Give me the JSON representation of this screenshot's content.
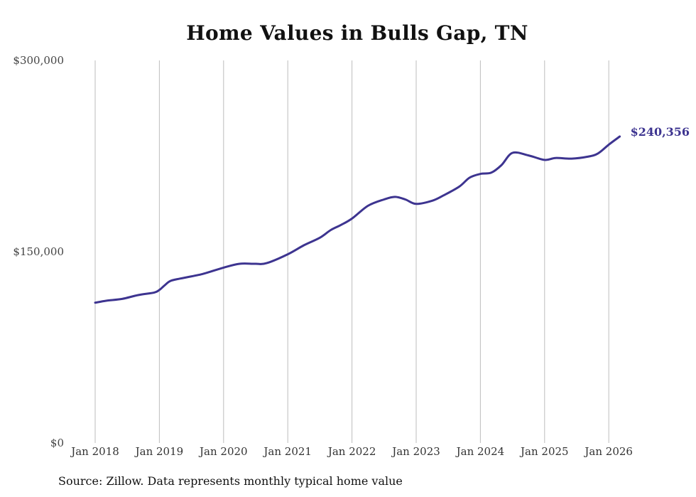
{
  "chart_data": {
    "type": "line",
    "title": "Home Values in Bulls Gap, TN",
    "xlabel": "",
    "ylabel": "",
    "ylim": [
      0,
      300000
    ],
    "y_ticks": [
      {
        "value": 0,
        "label": "$0"
      },
      {
        "value": 150000,
        "label": "$150,000"
      },
      {
        "value": 300000,
        "label": "$300,000"
      }
    ],
    "x_ticks": [
      {
        "value": 2018,
        "label": "Jan 2018"
      },
      {
        "value": 2019,
        "label": "Jan 2019"
      },
      {
        "value": 2020,
        "label": "Jan 2020"
      },
      {
        "value": 2021,
        "label": "Jan 2021"
      },
      {
        "value": 2022,
        "label": "Jan 2022"
      },
      {
        "value": 2023,
        "label": "Jan 2023"
      },
      {
        "value": 2024,
        "label": "Jan 2024"
      },
      {
        "value": 2025,
        "label": "Jan 2025"
      },
      {
        "value": 2026,
        "label": "Jan 2026"
      }
    ],
    "xlim": [
      2018,
      2026.2
    ],
    "grid": "vertical",
    "line_color": "#3d3490",
    "series": [
      {
        "name": "Typical home value",
        "x": [
          2018.0,
          2018.17,
          2018.42,
          2018.67,
          2018.92,
          2019.0,
          2019.08,
          2019.17,
          2019.33,
          2019.67,
          2020.0,
          2020.25,
          2020.5,
          2020.67,
          2021.0,
          2021.25,
          2021.5,
          2021.67,
          2021.83,
          2022.0,
          2022.25,
          2022.5,
          2022.67,
          2022.83,
          2023.0,
          2023.25,
          2023.42,
          2023.67,
          2023.83,
          2024.0,
          2024.17,
          2024.33,
          2024.5,
          2024.75,
          2025.0,
          2025.17,
          2025.42,
          2025.67,
          2025.83,
          2026.0,
          2026.17
        ],
        "values": [
          110000,
          111500,
          113000,
          116000,
          118000,
          120000,
          123500,
          127000,
          129000,
          132500,
          137500,
          140500,
          140500,
          141000,
          148000,
          155000,
          161000,
          167000,
          171000,
          176000,
          186000,
          191000,
          193000,
          191000,
          187500,
          190000,
          194000,
          201000,
          208000,
          211000,
          212000,
          218000,
          227500,
          225500,
          222000,
          223500,
          223000,
          224500,
          227000,
          234000,
          240356
        ]
      }
    ],
    "annotations": [
      {
        "x": 2026.17,
        "y": 240356,
        "text": "$240,356"
      }
    ]
  },
  "source_text": "Source: Zillow. Data represents monthly typical home value"
}
